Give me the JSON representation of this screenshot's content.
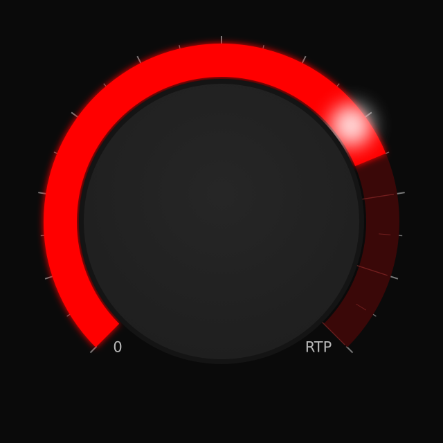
{
  "gauge": {
    "min_label": "0",
    "max_label": "RTP",
    "value_fraction": 0.75,
    "sweep_degrees": 270,
    "major_ticks": 10,
    "minor_ticks_per_major": 1
  },
  "colors": {
    "background": "#0a0a0a",
    "active_arc": "#ff0000",
    "inactive_arc": "#3a0808",
    "knob": "#232323",
    "tick": "#7a7a7a",
    "label": "#b9b9b9"
  }
}
